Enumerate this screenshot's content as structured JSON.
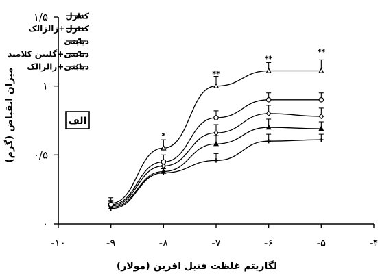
{
  "chart_data": {
    "type": "line",
    "xlabel": "لگاریتم غلظت فنیل افرین (مولار)",
    "ylabel": "میزان انقباض (گرم)",
    "panel_label": "الف",
    "xlim": [
      -10,
      -4
    ],
    "ylim": [
      0,
      1.5
    ],
    "x_ticks": [
      -10,
      -9,
      -8,
      -7,
      -6,
      -5,
      -4
    ],
    "x_tick_labels": [
      "-۱۰",
      "-۹",
      "-۸",
      "-۷",
      "-۶",
      "-۵",
      "-۴"
    ],
    "y_ticks": [
      0,
      0.5,
      1,
      1.5
    ],
    "y_tick_labels": [
      "۰",
      "۰/۵",
      "۱",
      "۱/۵"
    ],
    "x": [
      -9,
      -8,
      -7,
      -6,
      -5
    ],
    "series": [
      {
        "name": "کنترل",
        "marker": "triangle",
        "values": [
          0.12,
          0.38,
          0.58,
          0.7,
          0.69
        ],
        "errors": [
          0.03,
          0.04,
          0.06,
          0.06,
          0.05
        ]
      },
      {
        "name": "کنترل+زالزالک",
        "marker": "plus",
        "values": [
          0.11,
          0.37,
          0.46,
          0.6,
          0.61
        ],
        "errors": [
          0.02,
          0.03,
          0.05,
          0.05,
          0.04
        ]
      },
      {
        "name": "دیابتی",
        "marker": "triangle-open",
        "values": [
          0.15,
          0.55,
          1.0,
          1.11,
          1.11
        ],
        "errors": [
          0.04,
          0.06,
          0.07,
          0.06,
          0.08
        ]
      },
      {
        "name": "دیابتی+گلیبن کلامید",
        "marker": "diamond-open",
        "values": [
          0.13,
          0.42,
          0.66,
          0.8,
          0.78
        ],
        "errors": [
          0.03,
          0.04,
          0.06,
          0.06,
          0.06
        ]
      },
      {
        "name": "دیابتی+زالزالک",
        "marker": "circle-open",
        "values": [
          0.14,
          0.45,
          0.77,
          0.9,
          0.9
        ],
        "errors": [
          0.03,
          0.05,
          0.05,
          0.05,
          0.05
        ]
      }
    ],
    "annotations": [
      {
        "x": -7,
        "y": 1.07,
        "text": "**"
      },
      {
        "x": -6,
        "y": 1.18,
        "text": "**"
      },
      {
        "x": -5,
        "y": 1.23,
        "text": "**"
      },
      {
        "x": -8,
        "y": 0.62,
        "text": "*"
      }
    ],
    "grid": false,
    "legend_position": "top-left"
  }
}
